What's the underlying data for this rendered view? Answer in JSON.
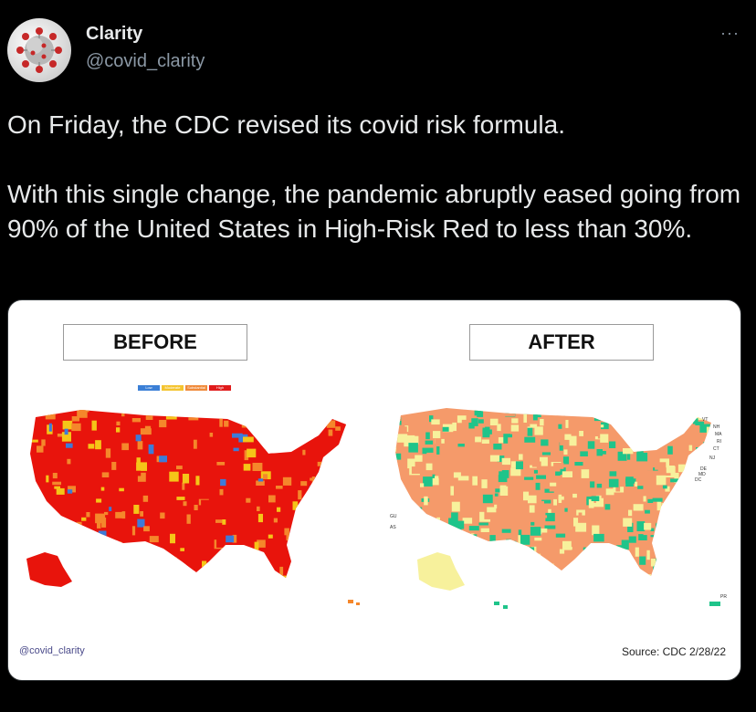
{
  "author": {
    "name": "Clarity",
    "handle": "@covid_clarity",
    "avatar_icon": "virus-icon"
  },
  "more_icon": "ellipsis-icon",
  "more_label": "···",
  "tweet": {
    "line1": "On Friday, the CDC revised its covid risk formula.",
    "line2": "With this single change, the pandemic abruptly eased going from 90% of the United States in High-Risk Red to less than 30%."
  },
  "media": {
    "before_label": "BEFORE",
    "after_label": "AFTER",
    "legend": [
      "Low",
      "Moderate",
      "Substantial",
      "High"
    ],
    "legend_colors": [
      "#3b7fd6",
      "#f4c430",
      "#f08a3a",
      "#e01b1b"
    ],
    "watermark": "@covid_clarity",
    "source": "Source: CDC  2/28/22",
    "after_map_labels": [
      "VT",
      "NH",
      "MA",
      "RI",
      "CT",
      "NJ",
      "DE",
      "MD",
      "DC",
      "GU",
      "AS",
      "PR"
    ],
    "colors": {
      "before_high": "#e8140c",
      "before_substantial": "#f5872b",
      "before_moderate": "#f5c518",
      "before_low": "#3d7bd9",
      "after_high": "#f59a6a",
      "after_medium": "#f7f19c",
      "after_low": "#1fc48a"
    }
  }
}
